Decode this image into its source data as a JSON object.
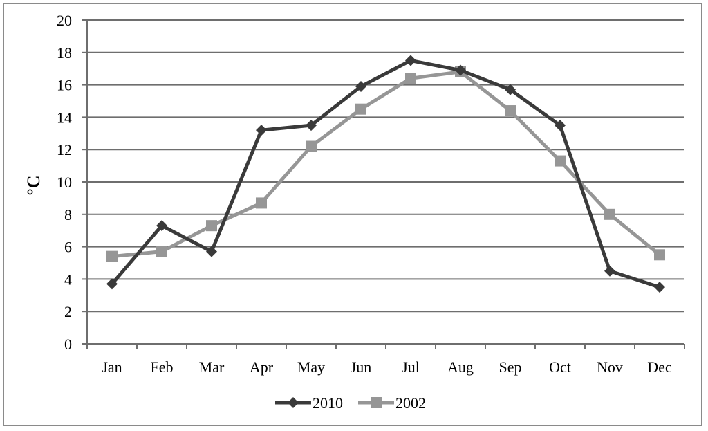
{
  "chart_data": {
    "type": "line",
    "title": "",
    "xlabel": "",
    "ylabel": "°C",
    "ylim": [
      0,
      20
    ],
    "ytick_step": 2,
    "yticks": [
      "0",
      "2",
      "4",
      "6",
      "8",
      "10",
      "12",
      "14",
      "16",
      "18",
      "20"
    ],
    "grid": true,
    "legend_position": "bottom",
    "categories": [
      "Jan",
      "Feb",
      "Mar",
      "Apr",
      "May",
      "Jun",
      "Jul",
      "Aug",
      "Sep",
      "Oct",
      "Nov",
      "Dec"
    ],
    "series": [
      {
        "name": "2010",
        "marker": "diamond",
        "color": "#3a3a3a",
        "values": [
          3.7,
          7.3,
          5.7,
          13.2,
          13.5,
          15.9,
          17.5,
          16.9,
          15.7,
          13.5,
          4.5,
          3.5
        ]
      },
      {
        "name": "2002",
        "marker": "square",
        "color": "#969696",
        "values": [
          5.4,
          5.7,
          7.3,
          8.7,
          12.2,
          14.5,
          16.4,
          16.8,
          14.4,
          11.3,
          8.0,
          5.5
        ]
      }
    ]
  }
}
